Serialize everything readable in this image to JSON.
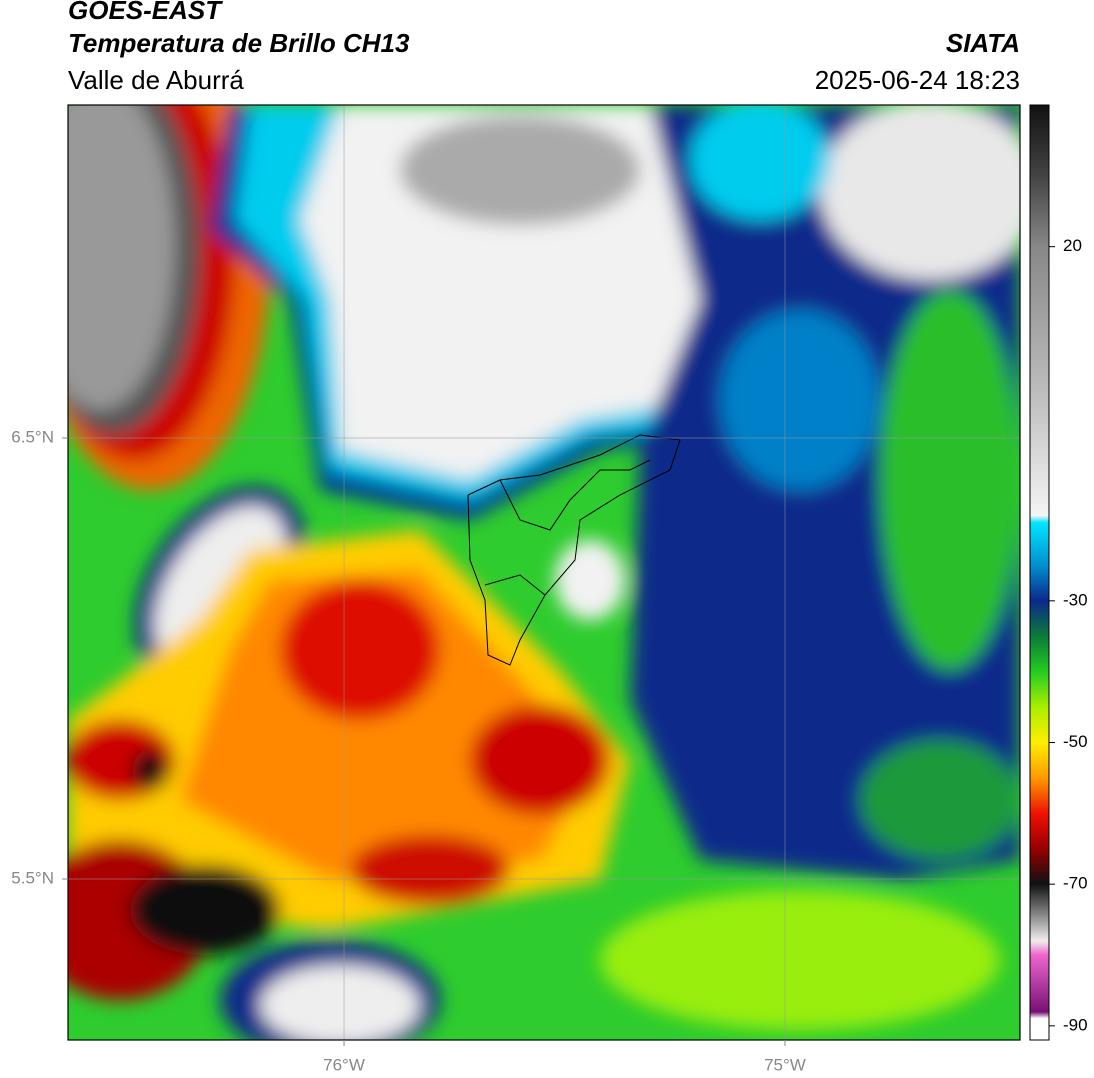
{
  "header": {
    "source": "GOES-EAST",
    "product": "Temperatura de Brillo CH13",
    "region": "Valle de Aburrá",
    "organization": "SIATA",
    "datetime": "2025-06-24 18:23"
  },
  "map": {
    "lonlim": [
      -76.626,
      -74.467
    ],
    "latlim": [
      5.135,
      7.255
    ],
    "lonticks": [
      {
        "value": -76,
        "label": "76°W"
      },
      {
        "value": -75,
        "label": "75°W"
      }
    ],
    "latticks": [
      {
        "value": 6.5,
        "label": "6.5°N"
      },
      {
        "value": 5.5,
        "label": "5.5°N"
      }
    ],
    "grid": true
  },
  "colorbar": {
    "lim": [
      -92,
      40
    ],
    "ticks": [
      20,
      -30,
      -50,
      -70,
      -90
    ]
  }
}
